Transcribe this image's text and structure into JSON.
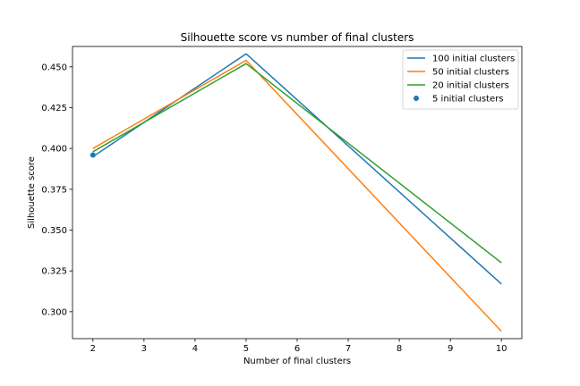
{
  "chart_data": {
    "type": "line",
    "title": "Silhouette score vs number of final clusters",
    "xlabel": "Number of final clusters",
    "ylabel": "Silhouette score",
    "xlim": [
      1.6,
      10.4
    ],
    "ylim": [
      0.2835,
      0.4625
    ],
    "xticks": [
      2,
      3,
      4,
      5,
      6,
      7,
      8,
      9,
      10
    ],
    "xtick_labels": [
      "2",
      "3",
      "4",
      "5",
      "6",
      "7",
      "8",
      "9",
      "10"
    ],
    "yticks": [
      0.3,
      0.325,
      0.35,
      0.375,
      0.4,
      0.425,
      0.45
    ],
    "ytick_labels": [
      "0.300",
      "0.325",
      "0.350",
      "0.375",
      "0.400",
      "0.425",
      "0.450"
    ],
    "grid": false,
    "legend_position": "top-right",
    "series": [
      {
        "name": "100 initial clusters",
        "kind": "line",
        "color": "#1f77b4",
        "x": [
          2,
          5,
          10
        ],
        "y": [
          0.395,
          0.458,
          0.317
        ]
      },
      {
        "name": "50 initial clusters",
        "kind": "line",
        "color": "#ff7f0e",
        "x": [
          2,
          5,
          10
        ],
        "y": [
          0.4,
          0.454,
          0.288
        ]
      },
      {
        "name": "20 initial clusters",
        "kind": "line",
        "color": "#2ca02c",
        "x": [
          2,
          5,
          10
        ],
        "y": [
          0.398,
          0.452,
          0.33
        ]
      },
      {
        "name": "5 initial clusters",
        "kind": "scatter",
        "color": "#1f77b4",
        "x": [
          2
        ],
        "y": [
          0.396
        ]
      }
    ]
  }
}
